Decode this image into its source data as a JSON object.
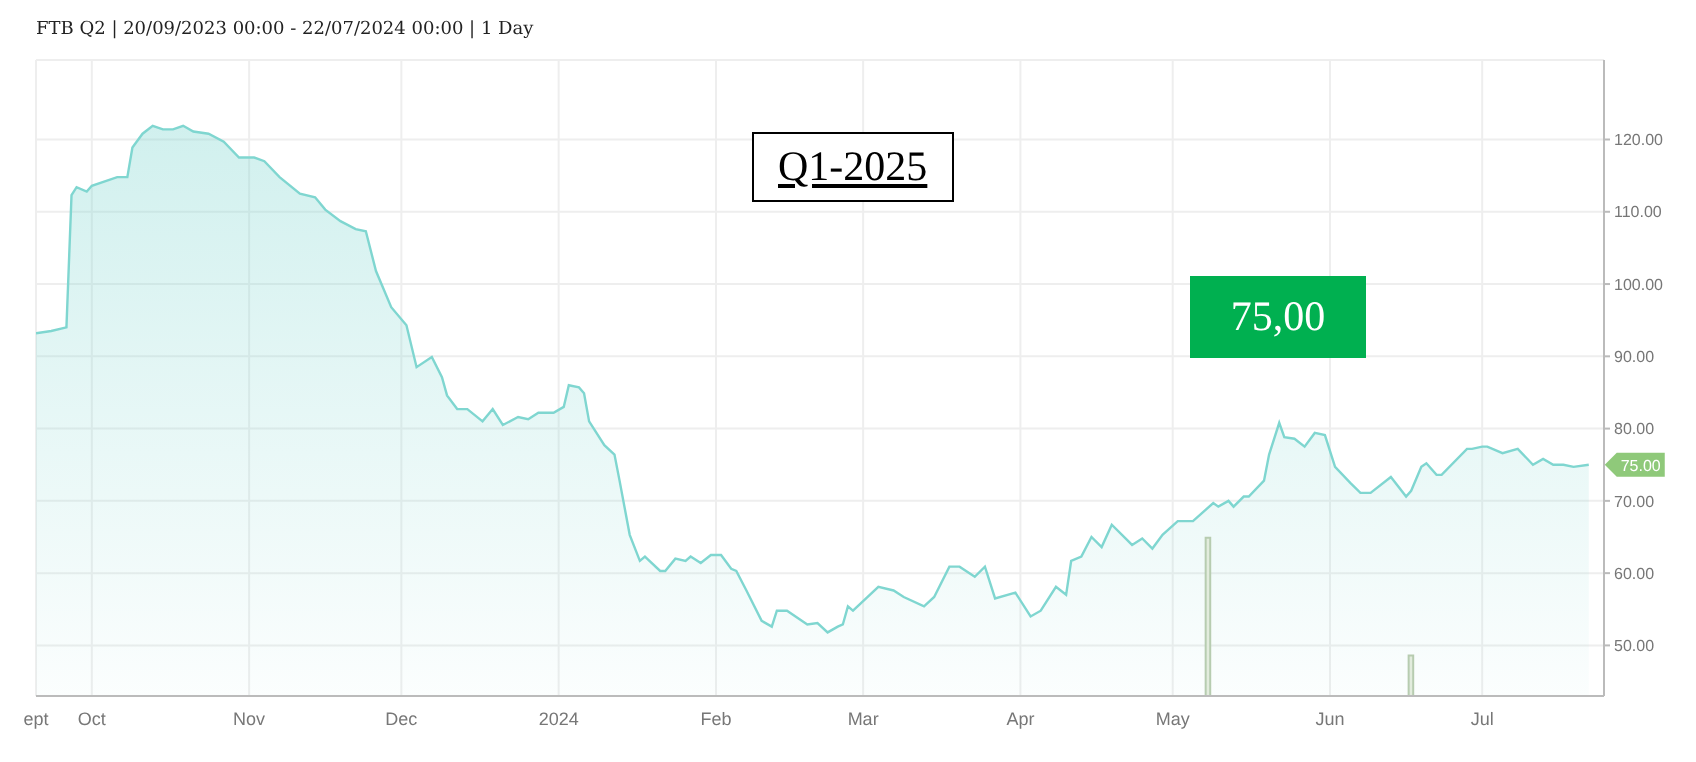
{
  "chart_data": {
    "type": "area",
    "title": "FTB Q2 | 20/09/2023 00:00 - 22/07/2024 00:00 | 1 Day",
    "xlim": [
      "2023-09-20",
      "2024-07-25"
    ],
    "xticks": [
      {
        "value": "2023-09-20",
        "label": "ept"
      },
      {
        "value": "2023-10-01",
        "label": "Oct"
      },
      {
        "value": "2023-11-01",
        "label": "Nov"
      },
      {
        "value": "2023-12-01",
        "label": "Dec"
      },
      {
        "value": "2024-01-01",
        "label": "2024"
      },
      {
        "value": "2024-02-01",
        "label": "Feb"
      },
      {
        "value": "2024-03-01",
        "label": "Mar"
      },
      {
        "value": "2024-04-01",
        "label": "Apr"
      },
      {
        "value": "2024-05-01",
        "label": "May"
      },
      {
        "value": "2024-06-01",
        "label": "Jun"
      },
      {
        "value": "2024-07-01",
        "label": "Jul"
      }
    ],
    "ylim": [
      43,
      131
    ],
    "yticks": [
      {
        "value": 50,
        "label": "50.00"
      },
      {
        "value": 60,
        "label": "60.00"
      },
      {
        "value": 70,
        "label": "70.00"
      },
      {
        "value": 80,
        "label": "80.00"
      },
      {
        "value": 90,
        "label": "90.00"
      },
      {
        "value": 100,
        "label": "100.00"
      },
      {
        "value": 110,
        "label": "110.00"
      },
      {
        "value": 120,
        "label": "120.00"
      }
    ],
    "grid": true,
    "series": [
      {
        "color": "#7fd6d0",
        "x": [
          "2023-09-20",
          "2023-09-23",
          "2023-09-26",
          "2023-09-27",
          "2023-09-28",
          "2023-09-30",
          "2023-10-01",
          "2023-10-06",
          "2023-10-08",
          "2023-10-09",
          "2023-10-11",
          "2023-10-13",
          "2023-10-15",
          "2023-10-17",
          "2023-10-19",
          "2023-10-21",
          "2023-10-24",
          "2023-10-27",
          "2023-10-30",
          "2023-11-02",
          "2023-11-04",
          "2023-11-07",
          "2023-11-11",
          "2023-11-14",
          "2023-11-16",
          "2023-11-19",
          "2023-11-22",
          "2023-11-24",
          "2023-11-26",
          "2023-11-29",
          "2023-12-02",
          "2023-12-04",
          "2023-12-07",
          "2023-12-09",
          "2023-12-10",
          "2023-12-12",
          "2023-12-14",
          "2023-12-17",
          "2023-12-19",
          "2023-12-21",
          "2023-12-24",
          "2023-12-26",
          "2023-12-28",
          "2023-12-31",
          "2024-01-02",
          "2024-01-03",
          "2024-01-05",
          "2024-01-06",
          "2024-01-07",
          "2024-01-10",
          "2024-01-12",
          "2024-01-13",
          "2024-01-15",
          "2024-01-17",
          "2024-01-18",
          "2024-01-21",
          "2024-01-22",
          "2024-01-24",
          "2024-01-26",
          "2024-01-27",
          "2024-01-29",
          "2024-01-31",
          "2024-02-02",
          "2024-02-04",
          "2024-02-05",
          "2024-02-07",
          "2024-02-10",
          "2024-02-12",
          "2024-02-13",
          "2024-02-15",
          "2024-02-19",
          "2024-02-21",
          "2024-02-23",
          "2024-02-25",
          "2024-02-26",
          "2024-02-27",
          "2024-02-28",
          "2024-03-04",
          "2024-03-07",
          "2024-03-09",
          "2024-03-13",
          "2024-03-15",
          "2024-03-18",
          "2024-03-20",
          "2024-03-23",
          "2024-03-25",
          "2024-03-27",
          "2024-03-31",
          "2024-04-03",
          "2024-04-05",
          "2024-04-08",
          "2024-04-10",
          "2024-04-11",
          "2024-04-13",
          "2024-04-15",
          "2024-04-17",
          "2024-04-19",
          "2024-04-23",
          "2024-04-25",
          "2024-04-27",
          "2024-04-29",
          "2024-05-02",
          "2024-05-05",
          "2024-05-09",
          "2024-05-10",
          "2024-05-12",
          "2024-05-13",
          "2024-05-15",
          "2024-05-16",
          "2024-05-19",
          "2024-05-20",
          "2024-05-22",
          "2024-05-23",
          "2024-05-25",
          "2024-05-27",
          "2024-05-29",
          "2024-05-31",
          "2024-06-02",
          "2024-06-05",
          "2024-06-07",
          "2024-06-09",
          "2024-06-13",
          "2024-06-16",
          "2024-06-17",
          "2024-06-19",
          "2024-06-20",
          "2024-06-22",
          "2024-06-23",
          "2024-06-28",
          "2024-06-29",
          "2024-07-01",
          "2024-07-02",
          "2024-07-05",
          "2024-07-08",
          "2024-07-11",
          "2024-07-13",
          "2024-07-15",
          "2024-07-17",
          "2024-07-19",
          "2024-07-22"
        ],
        "values": [
          93.2,
          93.5,
          94.0,
          112.3,
          113.4,
          112.8,
          113.6,
          114.8,
          114.8,
          118.9,
          120.8,
          121.9,
          121.4,
          121.4,
          121.9,
          121.1,
          120.8,
          119.7,
          117.5,
          117.5,
          117.0,
          114.8,
          112.5,
          112.0,
          110.3,
          108.7,
          107.6,
          107.3,
          101.8,
          96.8,
          94.3,
          88.5,
          89.9,
          87.1,
          84.6,
          82.7,
          82.7,
          81.0,
          82.7,
          80.5,
          81.6,
          81.3,
          82.2,
          82.2,
          83.0,
          86.0,
          85.7,
          84.9,
          81.0,
          77.7,
          76.4,
          72.8,
          65.3,
          61.7,
          62.3,
          60.3,
          60.3,
          62.0,
          61.7,
          62.3,
          61.4,
          62.5,
          62.5,
          60.6,
          60.3,
          57.6,
          53.4,
          52.6,
          54.8,
          54.8,
          52.9,
          53.1,
          51.8,
          52.6,
          52.9,
          55.4,
          54.8,
          58.1,
          57.6,
          56.7,
          55.4,
          56.7,
          60.9,
          60.9,
          59.5,
          60.9,
          56.5,
          57.3,
          54.0,
          54.8,
          58.1,
          57.0,
          61.7,
          62.3,
          65.0,
          63.6,
          66.7,
          63.9,
          64.8,
          63.4,
          65.3,
          67.2,
          67.2,
          69.7,
          69.2,
          70.0,
          69.2,
          70.6,
          70.6,
          72.8,
          76.4,
          80.8,
          78.8,
          78.6,
          77.5,
          79.4,
          79.1,
          74.7,
          72.5,
          71.1,
          71.1,
          73.3,
          70.6,
          71.4,
          74.7,
          75.2,
          73.6,
          73.6,
          77.2,
          77.2,
          77.5,
          77.5,
          76.6,
          77.2,
          75.0,
          75.8,
          75.0,
          75.0,
          74.7,
          75.0
        ]
      },
      {
        "type": "bar",
        "color": "#e2ecdd",
        "x": [
          "2024-05-08",
          "2024-06-17"
        ],
        "values": [
          64.9,
          48.6
        ]
      }
    ],
    "annotations": [
      "Q1-2025",
      "75,00",
      {
        "text": "75.00",
        "x": "2024-07-22",
        "y": 75
      }
    ]
  }
}
